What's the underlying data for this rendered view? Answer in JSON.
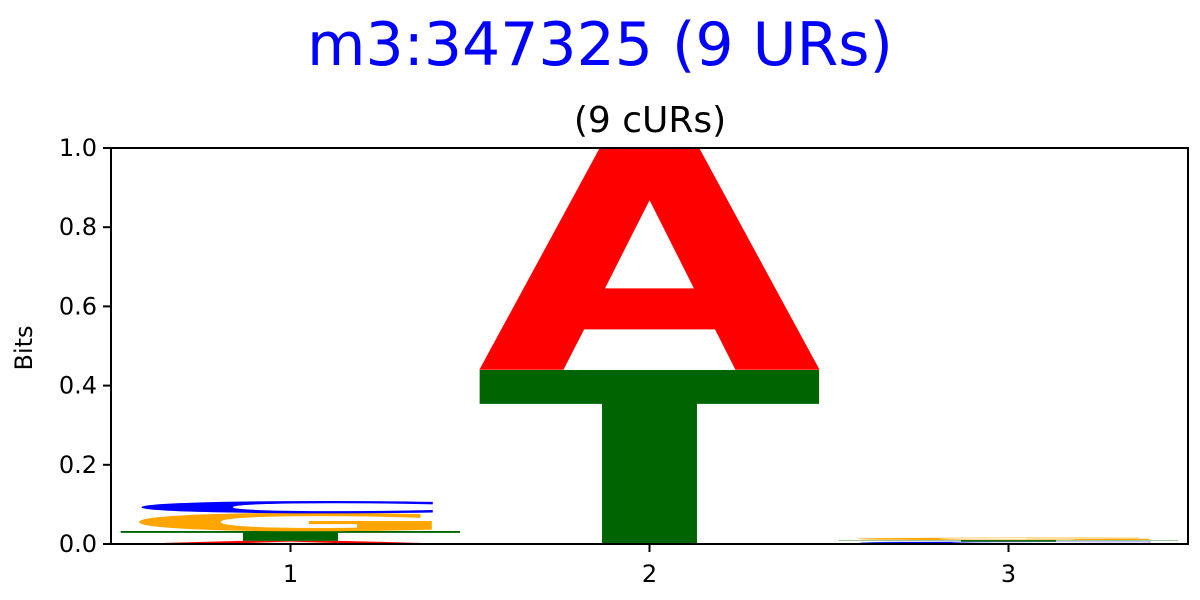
{
  "figure": {
    "suptitle": "m3:347325 (9 URs)",
    "suptitle_color": "#0000ff"
  },
  "chart_data": {
    "type": "sequence-logo",
    "title": "(9 cURs)",
    "xlabel": "",
    "ylabel": "Bits",
    "ylim": [
      0,
      1.0
    ],
    "yticks": [
      0.0,
      0.2,
      0.4,
      0.6,
      0.8,
      1.0
    ],
    "ytick_labels": [
      "0.0",
      "0.2",
      "0.4",
      "0.6",
      "0.8",
      "1.0"
    ],
    "positions": [
      1,
      2,
      3
    ],
    "xtick_labels": [
      "1",
      "2",
      "3"
    ],
    "xlim": [
      0.5,
      3.5
    ],
    "grid": false,
    "letter_colors": {
      "A": "#ff0000",
      "C": "#0000ff",
      "G": "#ffa500",
      "T": "#006400"
    },
    "columns": [
      {
        "position": 1,
        "stack": [
          {
            "letter": "A",
            "bits": 0.008
          },
          {
            "letter": "T",
            "bits": 0.025
          },
          {
            "letter": "G",
            "bits": 0.045
          },
          {
            "letter": "C",
            "bits": 0.03
          }
        ]
      },
      {
        "position": 2,
        "stack": [
          {
            "letter": "T",
            "bits": 0.44
          },
          {
            "letter": "A",
            "bits": 0.56
          }
        ]
      },
      {
        "position": 3,
        "stack": [
          {
            "letter": "A",
            "bits": 0.002
          },
          {
            "letter": "C",
            "bits": 0.004
          },
          {
            "letter": "T",
            "bits": 0.004
          },
          {
            "letter": "G",
            "bits": 0.006
          }
        ]
      }
    ]
  }
}
